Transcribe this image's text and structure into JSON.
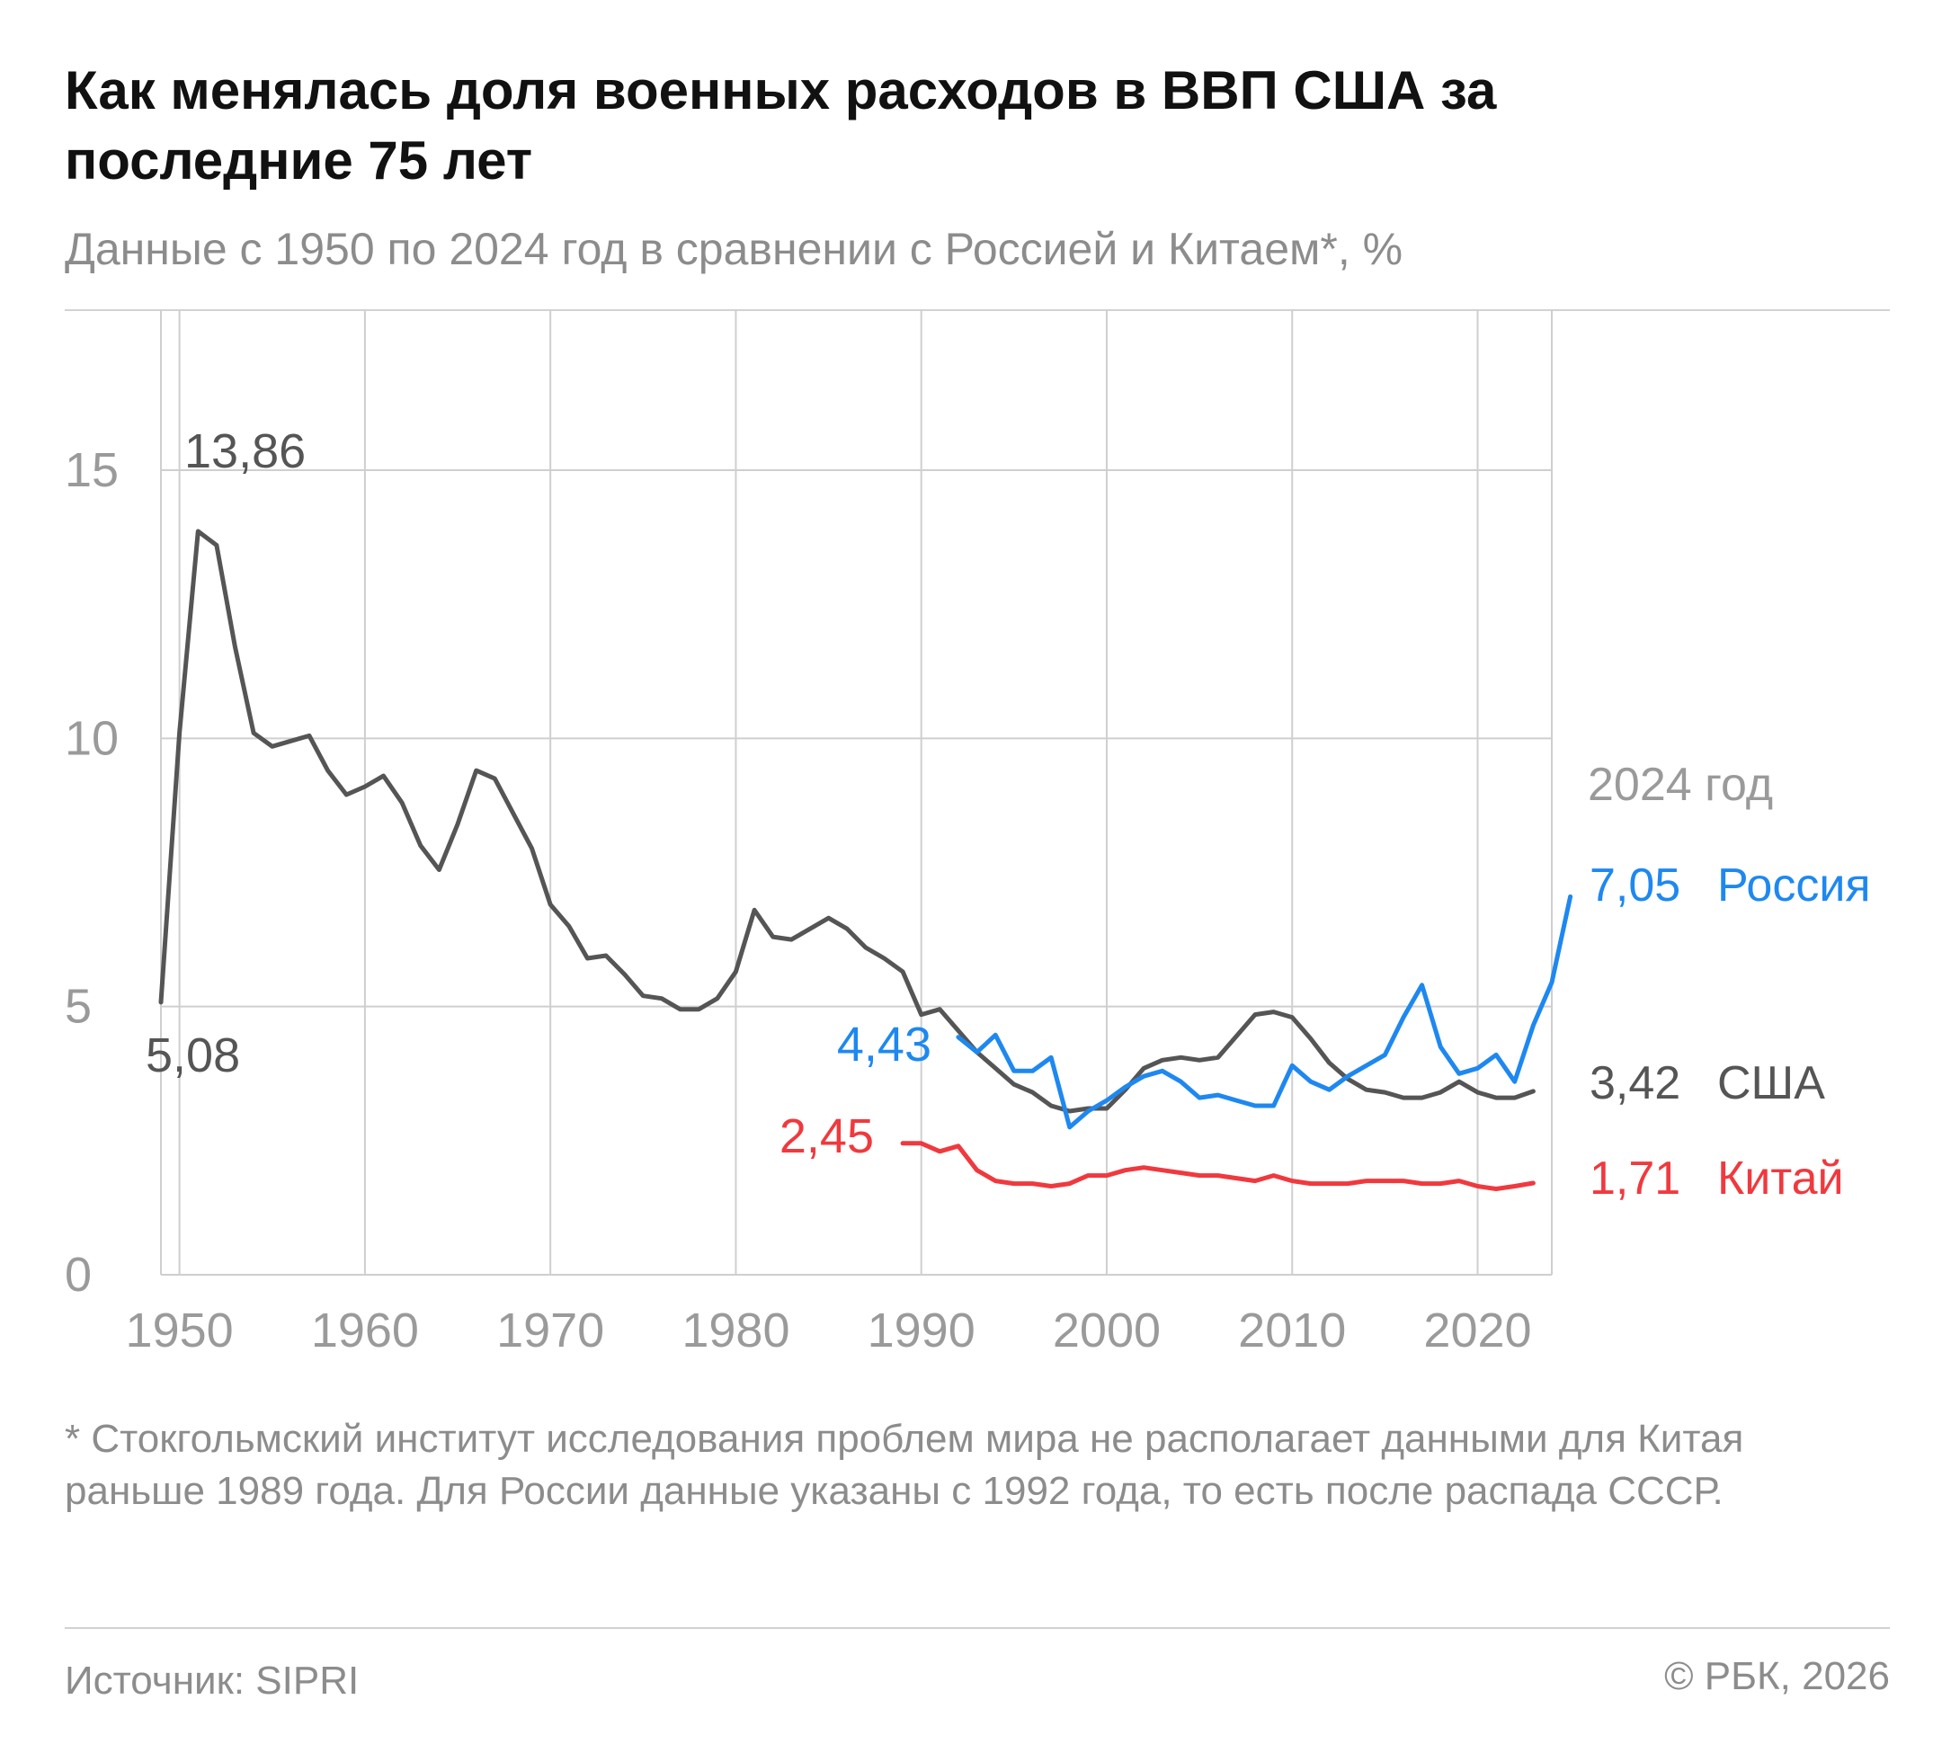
{
  "title": "Как менялась доля военных расходов в ВВП США за последние 75 лет",
  "subtitle": "Данные с 1950 по 2024 год в сравнении с Россией и Китаем*, %",
  "footnote": "* Стокгольмский институт исследования проблем мира не располагает данными для Китая раньше 1989 года. Для России данные указаны с 1992 года, то есть после распада СССР.",
  "source": "Источник: SIPRI",
  "copyright": "© РБК, 2026",
  "chart_data": {
    "type": "line",
    "title": "Как менялась доля военных расходов в ВВП США за последние 75 лет",
    "subtitle": "Данные с 1950 по 2024 год в сравнении с Россией и Китаем*, %",
    "xlabel": "",
    "ylabel": "%",
    "xlim": [
      1949,
      2024
    ],
    "ylim": [
      0,
      18
    ],
    "x_ticks": [
      1950,
      1960,
      1970,
      1980,
      1990,
      2000,
      2010,
      2020
    ],
    "y_ticks": [
      0,
      5,
      10,
      15
    ],
    "grid": true,
    "legend_title": "2024 год",
    "series": [
      {
        "name": "США",
        "color": "#555555",
        "start_year": 1949,
        "values": [
          5.08,
          10.1,
          13.86,
          13.6,
          11.7,
          10.1,
          9.85,
          9.95,
          10.05,
          9.4,
          8.95,
          9.1,
          9.3,
          8.8,
          8.0,
          7.55,
          8.4,
          9.4,
          9.25,
          8.6,
          7.95,
          6.9,
          6.5,
          5.9,
          5.95,
          5.6,
          5.2,
          5.15,
          4.95,
          4.95,
          5.15,
          5.65,
          6.8,
          6.3,
          6.25,
          6.45,
          6.65,
          6.45,
          6.1,
          5.9,
          5.65,
          4.85,
          4.95,
          4.55,
          4.15,
          3.85,
          3.55,
          3.4,
          3.15,
          3.05,
          3.1,
          3.1,
          3.45,
          3.85,
          4.0,
          4.05,
          4.0,
          4.05,
          4.45,
          4.85,
          4.9,
          4.8,
          4.4,
          3.95,
          3.65,
          3.45,
          3.4,
          3.3,
          3.3,
          3.4,
          3.6,
          3.4,
          3.3,
          3.3,
          3.42
        ],
        "label_first": "5,08",
        "label_peak": "13,86",
        "label_last": "3,42"
      },
      {
        "name": "Россия",
        "color": "#1e88f0",
        "start_year": 1992,
        "values": [
          4.43,
          4.15,
          4.47,
          3.8,
          3.8,
          4.05,
          2.75,
          3.05,
          3.25,
          3.5,
          3.7,
          3.8,
          3.6,
          3.3,
          3.35,
          3.25,
          3.15,
          3.15,
          3.9,
          3.6,
          3.45,
          3.7,
          3.9,
          4.1,
          4.8,
          5.4,
          4.25,
          3.75,
          3.85,
          4.1,
          3.6,
          4.65,
          5.45,
          7.05
        ],
        "label_first": "4,43",
        "label_last": "7,05"
      },
      {
        "name": "Китай",
        "color": "#f0393e",
        "start_year": 1989,
        "values": [
          2.45,
          2.45,
          2.3,
          2.4,
          1.95,
          1.75,
          1.7,
          1.7,
          1.65,
          1.7,
          1.85,
          1.85,
          1.95,
          2.0,
          1.95,
          1.9,
          1.85,
          1.85,
          1.8,
          1.75,
          1.85,
          1.75,
          1.7,
          1.7,
          1.7,
          1.75,
          1.75,
          1.75,
          1.7,
          1.7,
          1.75,
          1.65,
          1.6,
          1.65,
          1.71
        ],
        "label_first": "2,45",
        "label_last": "1,71"
      }
    ]
  }
}
